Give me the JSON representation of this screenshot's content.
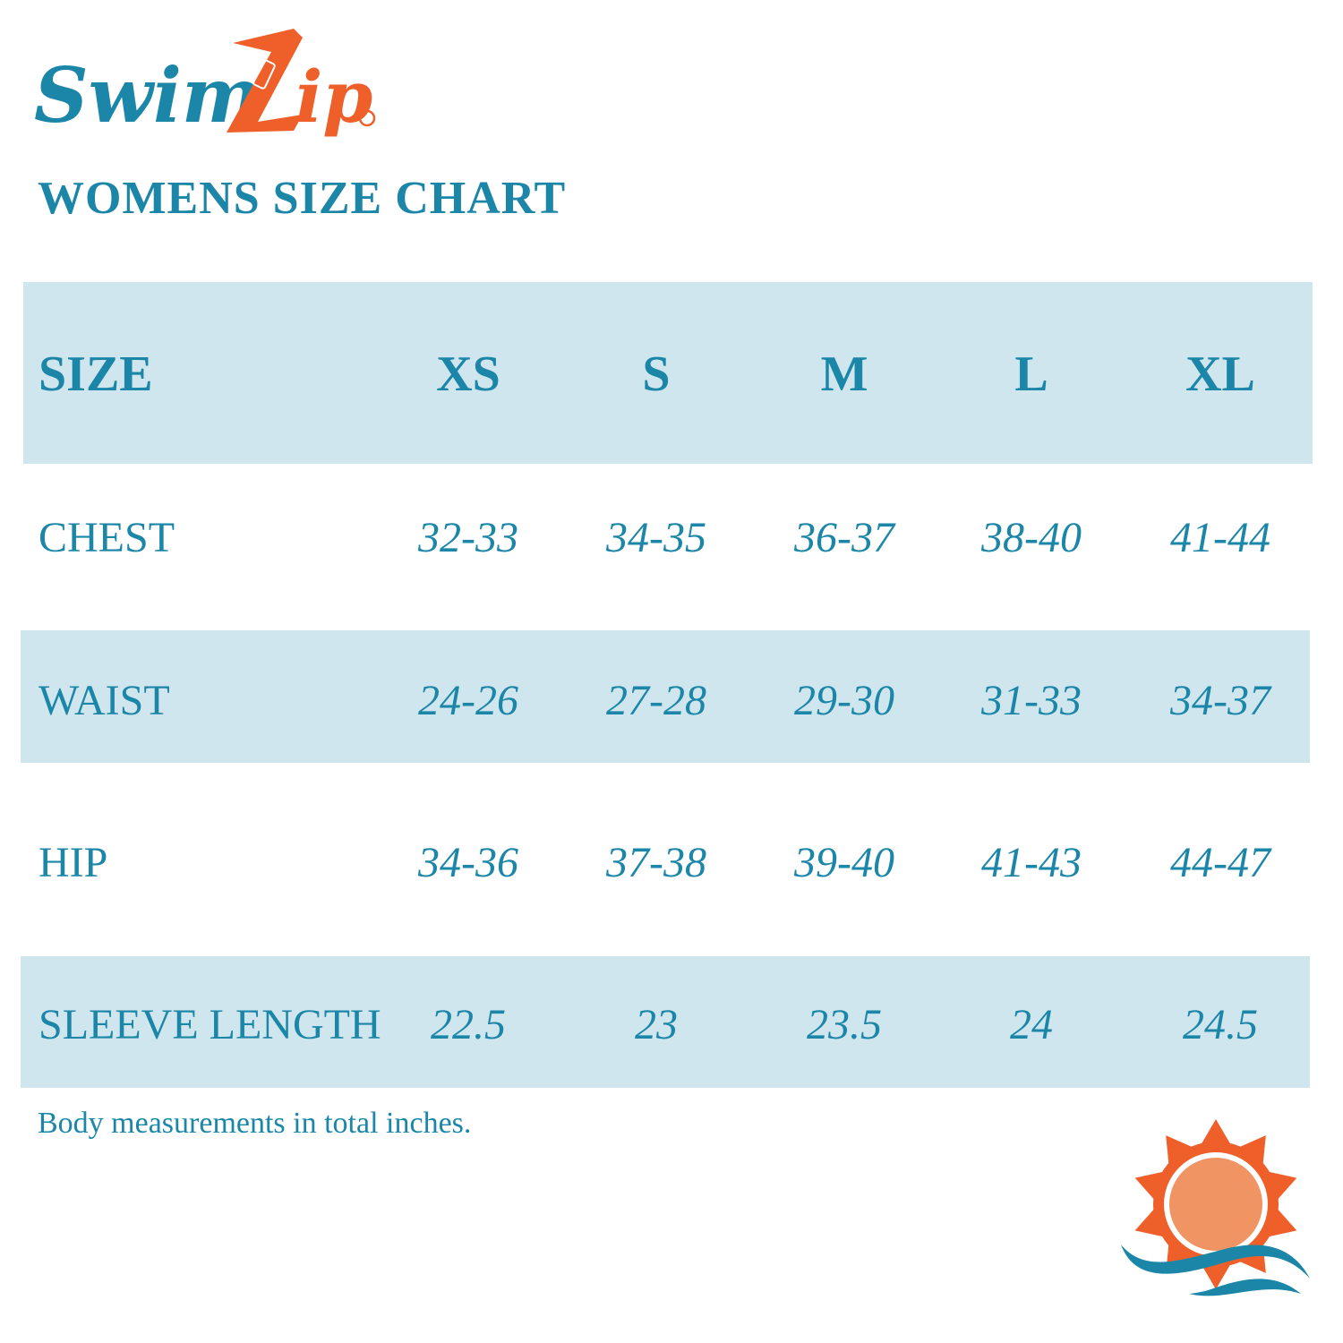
{
  "brand": {
    "logo_text": "SwimZip",
    "colors": {
      "teal": "#1b86a8",
      "orange": "#ef5f2a",
      "band": "#cfe6ee",
      "sun_inner": "#f19463"
    }
  },
  "title": "WOMENS SIZE CHART",
  "table": {
    "header": {
      "label": "SIZE",
      "sizes": [
        "XS",
        "S",
        "M",
        "L",
        "XL"
      ]
    },
    "rows": [
      {
        "label": "CHEST",
        "values": [
          "32-33",
          "34-35",
          "36-37",
          "38-40",
          "41-44"
        ]
      },
      {
        "label": "WAIST",
        "values": [
          "24-26",
          "27-28",
          "29-30",
          "31-33",
          "34-37"
        ]
      },
      {
        "label": "HIP",
        "values": [
          "34-36",
          "37-38",
          "39-40",
          "41-43",
          "44-47"
        ]
      },
      {
        "label": "SLEEVE LENGTH",
        "values": [
          "22.5",
          "23",
          "23.5",
          "24",
          "24.5"
        ]
      }
    ]
  },
  "footnote": "Body measurements in total inches.",
  "icons": {
    "logo": "swimzip-logo",
    "sun": "sun-wave-icon"
  }
}
